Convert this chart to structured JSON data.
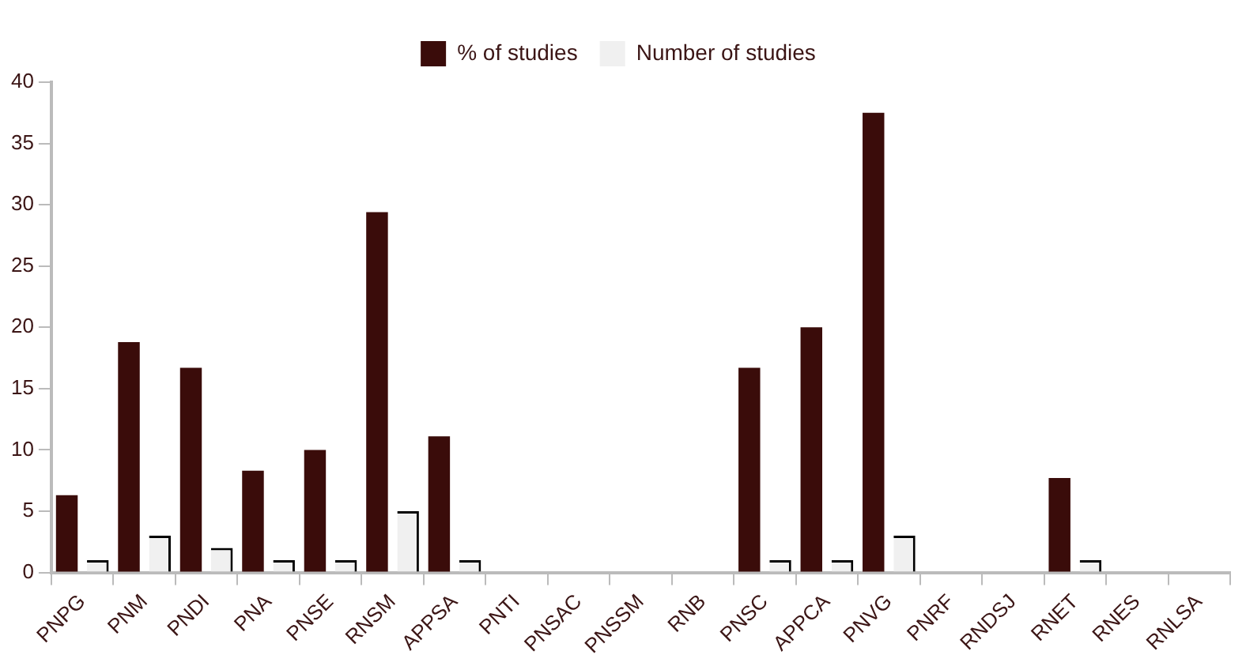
{
  "chart_data": {
    "type": "bar",
    "categories": [
      "PNPG",
      "PNM",
      "PNDI",
      "PNA",
      "PNSE",
      "RNSM",
      "APPSA",
      "PNTI",
      "PNSAC",
      "PNSSM",
      "RNB",
      "PNSC",
      "APPCA",
      "PNVG",
      "PNRF",
      "RNDSJ",
      "RNET",
      "RNES",
      "RNLSA"
    ],
    "series": [
      {
        "name": "% of studies",
        "color": "#3a0c0a",
        "values": [
          6.3,
          18.8,
          16.7,
          8.3,
          10,
          29.4,
          11.1,
          0,
          0,
          0,
          0,
          16.7,
          20,
          37.5,
          0,
          0,
          7.7,
          0,
          0
        ]
      },
      {
        "name": "Number of studies",
        "color": "#f0f0f0",
        "values": [
          1,
          3,
          2,
          1,
          1,
          5,
          1,
          0,
          0,
          0,
          0,
          1,
          1,
          3,
          0,
          0,
          1,
          0,
          0
        ]
      }
    ],
    "ylim": [
      0,
      40
    ],
    "yticks": [
      0,
      5,
      10,
      15,
      20,
      25,
      30,
      35,
      40
    ],
    "grid": false,
    "legend": "top"
  }
}
